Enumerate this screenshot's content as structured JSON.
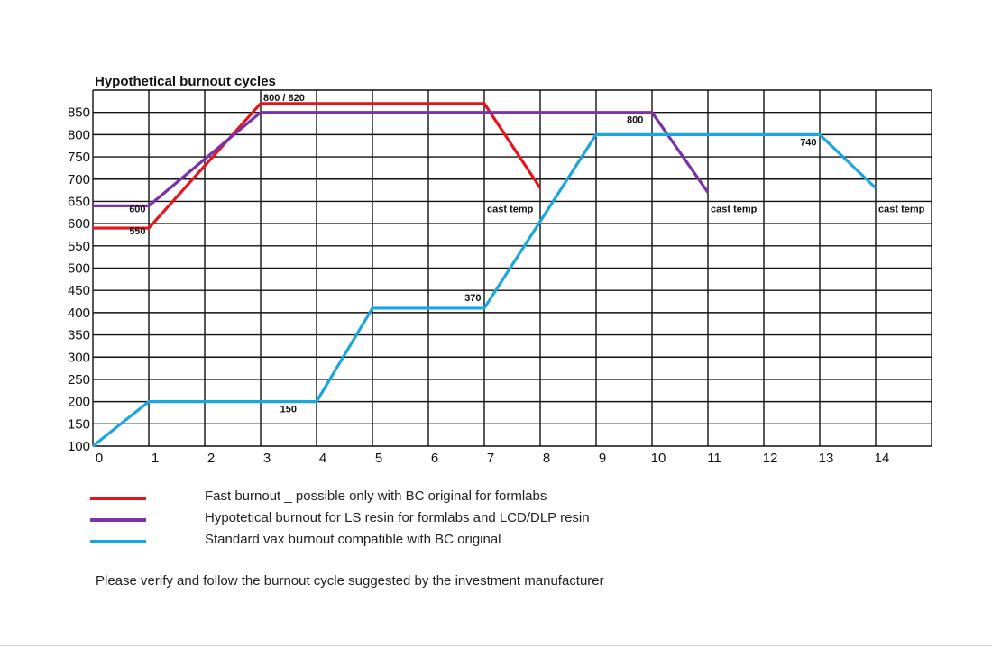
{
  "chart_data": {
    "type": "line",
    "title": "Hypothetical burnout cycles",
    "xlabel": "",
    "ylabel": "",
    "xlim": [
      0,
      15
    ],
    "ylim": [
      100,
      900
    ],
    "x_ticks": [
      0,
      1,
      2,
      3,
      4,
      5,
      6,
      7,
      8,
      9,
      10,
      11,
      12,
      13,
      14
    ],
    "y_ticks": [
      100,
      150,
      200,
      250,
      300,
      350,
      400,
      450,
      500,
      550,
      600,
      650,
      700,
      750,
      800,
      850
    ],
    "grid": true,
    "series": [
      {
        "name": "Fast burnout _ possible only with BC original for formlabs",
        "color": "#e8141b",
        "points": [
          [
            0,
            590
          ],
          [
            1,
            590
          ],
          [
            3,
            870
          ],
          [
            7,
            870
          ],
          [
            8,
            680
          ]
        ]
      },
      {
        "name": "Hypotetical burnout for LS resin for formlabs and LCD/DLP resin",
        "color": "#7b32a8",
        "points": [
          [
            0,
            640
          ],
          [
            1,
            640
          ],
          [
            3,
            850
          ],
          [
            10,
            850
          ],
          [
            11,
            670
          ]
        ]
      },
      {
        "name": "Standard vax burnout compatible with BC original",
        "color": "#1aa6e0",
        "points": [
          [
            0,
            100
          ],
          [
            1,
            200
          ],
          [
            4,
            200
          ],
          [
            5,
            410
          ],
          [
            7,
            410
          ],
          [
            9,
            800
          ],
          [
            13,
            800
          ],
          [
            14,
            680
          ]
        ]
      }
    ],
    "annotations": [
      {
        "text": "800 / 820",
        "x": 3,
        "y": 900
      },
      {
        "text": "600",
        "x": 0.6,
        "y": 650
      },
      {
        "text": "550",
        "x": 0.6,
        "y": 600
      },
      {
        "text": "800",
        "x": 9.5,
        "y": 850
      },
      {
        "text": "740",
        "x": 12.6,
        "y": 800
      },
      {
        "text": "cast temp",
        "x": 7,
        "y": 650
      },
      {
        "text": "cast temp",
        "x": 11,
        "y": 650
      },
      {
        "text": "cast temp",
        "x": 14,
        "y": 650
      },
      {
        "text": "370",
        "x": 6.6,
        "y": 450
      },
      {
        "text": "150",
        "x": 3.3,
        "y": 200
      }
    ]
  },
  "legend": [
    {
      "label": "Fast burnout _ possible only with BC original for formlabs",
      "color": "#e8141b"
    },
    {
      "label": "Hypotetical burnout for LS resin for formlabs and LCD/DLP resin",
      "color": "#7b32a8"
    },
    {
      "label": "Standard vax burnout compatible with BC original",
      "color": "#1aa6e0"
    }
  ],
  "note": "Please verify and follow the burnout cycle suggested by the investment manufacturer"
}
